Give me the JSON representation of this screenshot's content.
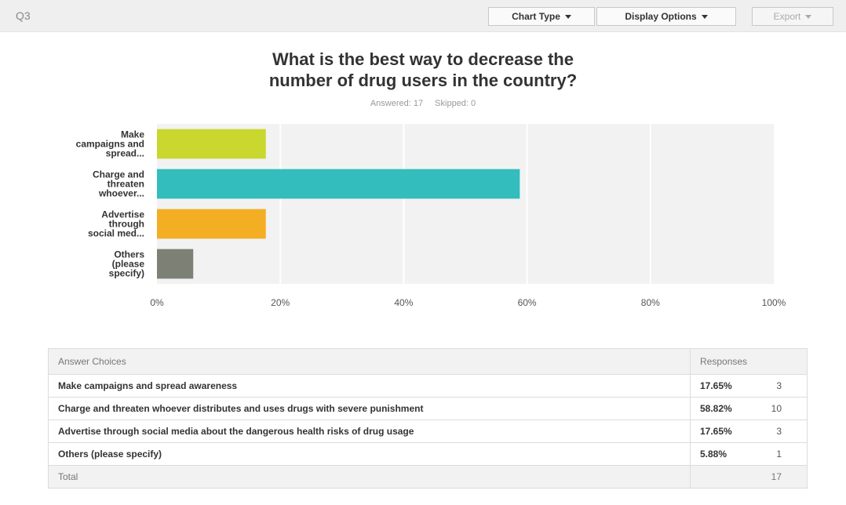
{
  "header": {
    "question_id": "Q3",
    "chart_type_label": "Chart Type",
    "display_options_label": "Display Options",
    "export_label": "Export"
  },
  "question": {
    "title_line1": "What is the best way to decrease the",
    "title_line2": "number of drug users in the country?",
    "answered": "Answered: 17",
    "skipped": "Skipped: 0"
  },
  "chart_data": {
    "type": "bar",
    "orientation": "horizontal",
    "categories": [
      [
        "Make",
        "campaigns and",
        "spread..."
      ],
      [
        "Charge and",
        "threaten",
        "whoever..."
      ],
      [
        "Advertise",
        "through",
        "social med..."
      ],
      [
        "Others",
        "(please",
        "specify)"
      ]
    ],
    "values": [
      17.65,
      58.82,
      17.65,
      5.88
    ],
    "colors": [
      "#c9d72f",
      "#33bdbd",
      "#f4ae24",
      "#7d8074"
    ],
    "xlim": [
      0,
      100
    ],
    "xticks": [
      "0%",
      "20%",
      "40%",
      "60%",
      "80%",
      "100%"
    ],
    "grid": true
  },
  "table": {
    "headers": [
      "Answer Choices",
      "Responses"
    ],
    "rows": [
      {
        "choice": "Make campaigns and spread awareness",
        "percent": "17.65%",
        "count": "3"
      },
      {
        "choice": "Charge and threaten whoever distributes and uses drugs with severe punishment",
        "percent": "58.82%",
        "count": "10"
      },
      {
        "choice": "Advertise through social media about the dangerous health risks of drug usage",
        "percent": "17.65%",
        "count": "3"
      },
      {
        "choice": "Others (please specify)",
        "percent": "5.88%",
        "count": "1"
      }
    ],
    "total_label": "Total",
    "total_count": "17"
  }
}
